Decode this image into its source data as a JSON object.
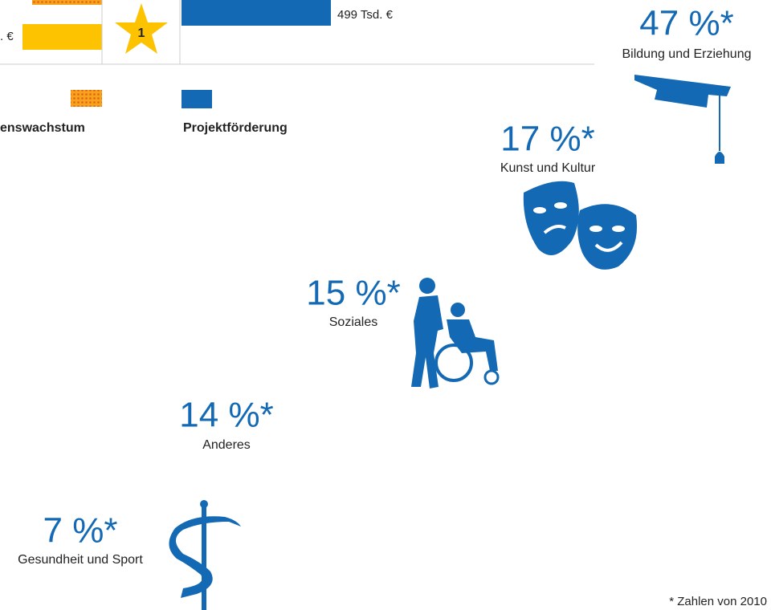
{
  "top": {
    "bar_label": ". €",
    "star": "1",
    "project_value": "499 Tsd. €"
  },
  "legend": [
    {
      "label": "enswachstum"
    },
    {
      "label": "Projektförderung"
    }
  ],
  "categories": [
    {
      "percent": "47 %*",
      "name": "Bildung und Erziehung"
    },
    {
      "percent": "17 %*",
      "name": "Kunst und Kultur"
    },
    {
      "percent": "15 %*",
      "name": "Soziales"
    },
    {
      "percent": "14 %*",
      "name": "Anderes"
    },
    {
      "percent": "7 %*",
      "name": "Gesundheit und Sport"
    }
  ],
  "footnote": "* Zahlen von 2010"
}
